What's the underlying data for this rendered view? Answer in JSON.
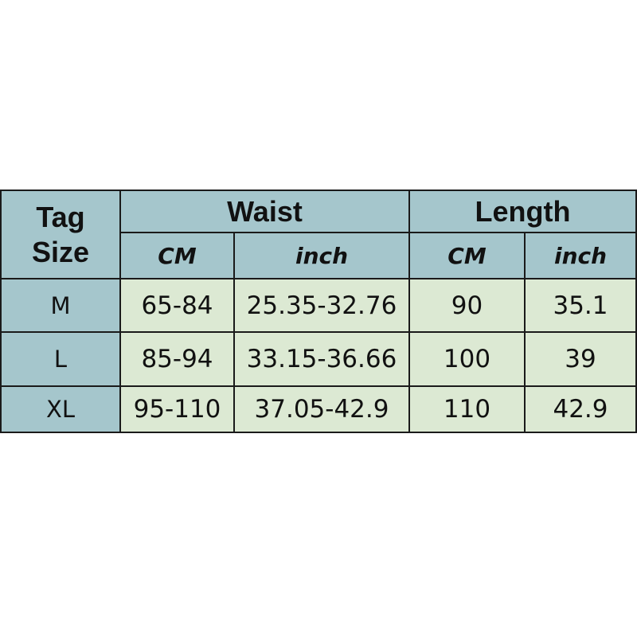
{
  "colors": {
    "header_bg": "#a5c6cc",
    "cell_bg": "#dce9d3",
    "border": "#1a1a1a"
  },
  "header": {
    "tag_size": "Tag Size",
    "tag_line1": "Tag",
    "tag_line2": "Size",
    "waist": "Waist",
    "length": "Length",
    "waist_cm": "CM",
    "waist_inch": "inch",
    "length_cm": "CM",
    "length_inch": "inch"
  },
  "rows": [
    {
      "size": "M",
      "waist_cm": "65-84",
      "waist_inch": "25.35-32.76",
      "length_cm": "90",
      "length_inch": "35.1"
    },
    {
      "size": "L",
      "waist_cm": "85-94",
      "waist_inch": "33.15-36.66",
      "length_cm": "100",
      "length_inch": "39"
    },
    {
      "size": "XL",
      "waist_cm": "95-110",
      "waist_inch": "37.05-42.9",
      "length_cm": "110",
      "length_inch": "42.9"
    }
  ]
}
